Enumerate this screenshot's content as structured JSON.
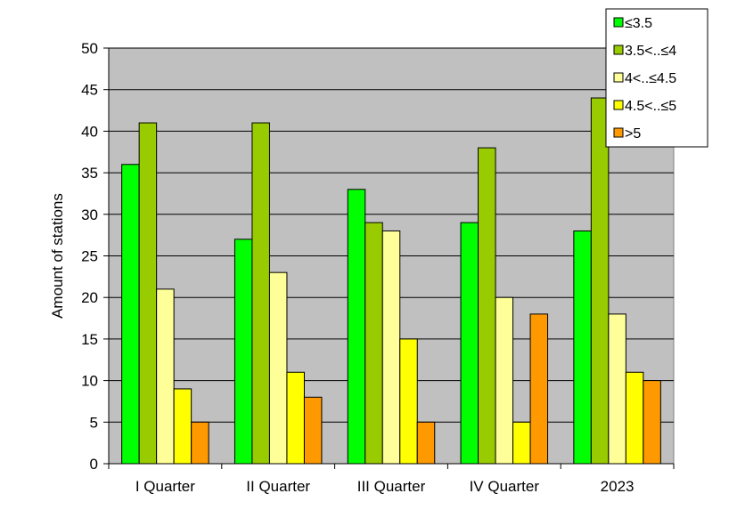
{
  "chart_data": {
    "type": "bar",
    "title": "",
    "xlabel": "",
    "ylabel": "Amount  of stations",
    "ylim": [
      0,
      50
    ],
    "yticks": [
      0,
      5,
      10,
      15,
      20,
      25,
      30,
      35,
      40,
      45,
      50
    ],
    "grid": true,
    "legend_position": "top-right",
    "categories": [
      "I Quarter",
      "II Quarter",
      "III Quarter",
      "IV Quarter",
      "2023"
    ],
    "series": [
      {
        "name": "≤3.5",
        "color": "#00ff00",
        "values": [
          36,
          27,
          33,
          29,
          28
        ]
      },
      {
        "name": "3.5<..≤4",
        "color": "#99cc00",
        "values": [
          41,
          41,
          29,
          38,
          44
        ]
      },
      {
        "name": "4<..≤4.5",
        "color": "#ffff99",
        "values": [
          21,
          23,
          28,
          20,
          18
        ]
      },
      {
        "name": "4.5<..≤5",
        "color": "#ffff00",
        "values": [
          9,
          11,
          15,
          5,
          11
        ]
      },
      {
        "name": ">5",
        "color": "#ff9900",
        "values": [
          5,
          8,
          5,
          18,
          10
        ]
      }
    ],
    "plot_background": "#c0c0c0"
  }
}
